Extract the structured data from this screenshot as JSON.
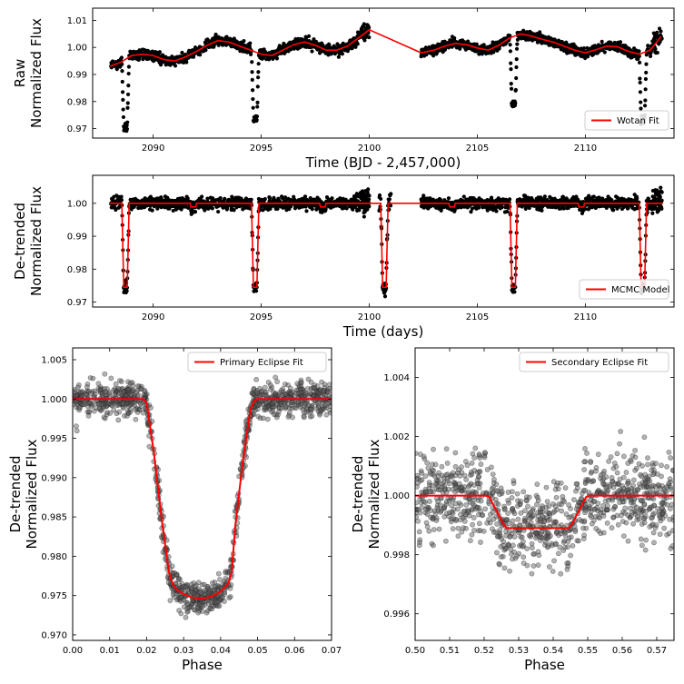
{
  "chart_data": [
    {
      "type": "scatter",
      "panel": "raw",
      "xlabel": "Time (BJD - 2,457,000)",
      "ylabel": [
        "Raw",
        "Normalized Flux"
      ],
      "xlim": [
        2087.2,
        2114.1
      ],
      "ylim": [
        0.9665,
        1.0145
      ],
      "xticks": [
        2090,
        2095,
        2100,
        2105,
        2110
      ],
      "xtick_labels": [
        "2090",
        "2095",
        "2100",
        "2105",
        "2110"
      ],
      "yticks": [
        0.97,
        0.98,
        0.99,
        1.0,
        1.01
      ],
      "ytick_labels": [
        "0.97",
        "0.98",
        "0.99",
        "1.00",
        "1.01"
      ],
      "legend": {
        "position": "lower-right",
        "entries": [
          "Wotan Fit"
        ]
      },
      "grid": false,
      "eclipse_times": [
        2088.72,
        2094.72,
        2100.7,
        2106.68,
        2112.66
      ],
      "eclipse_depth": 0.025,
      "data_gap": [
        2100.0,
        2102.4
      ],
      "series": [
        {
          "name": "Wotan Fit",
          "kind": "line",
          "color": "#ff0000",
          "x": [
            2088.0,
            2088.5,
            2089.0,
            2089.5,
            2090.0,
            2090.5,
            2091.0,
            2091.5,
            2092.0,
            2092.5,
            2093.0,
            2093.5,
            2094.0,
            2094.5,
            2095.0,
            2095.5,
            2096.0,
            2096.5,
            2097.0,
            2097.5,
            2098.0,
            2098.5,
            2099.0,
            2099.5,
            2100.0,
            2102.4,
            2103.0,
            2103.5,
            2104.0,
            2104.5,
            2105.0,
            2105.5,
            2106.0,
            2106.5,
            2107.0,
            2107.5,
            2108.0,
            2108.5,
            2109.0,
            2109.5,
            2110.0,
            2110.5,
            2111.0,
            2111.5,
            2112.0,
            2112.5,
            2113.0,
            2113.5
          ],
          "y": [
            0.993,
            0.9945,
            0.997,
            0.9975,
            0.997,
            0.9955,
            0.995,
            0.9965,
            0.9985,
            1.0008,
            1.0025,
            1.002,
            1.0005,
            0.999,
            0.9975,
            0.997,
            0.999,
            1.001,
            1.002,
            1.0008,
            0.999,
            0.999,
            1.0005,
            1.0035,
            1.0065,
            0.998,
            0.999,
            1.0005,
            1.0015,
            1.001,
            0.9998,
            0.999,
            1.0008,
            1.0035,
            1.005,
            1.0042,
            1.003,
            1.002,
            1.0005,
            0.999,
            0.998,
            0.9992,
            1.0005,
            1.0002,
            0.9985,
            0.9975,
            0.999,
            1.004
          ]
        },
        {
          "name": "",
          "kind": "scatter",
          "color": "#000000"
        }
      ]
    },
    {
      "type": "scatter",
      "panel": "detrended",
      "xlabel": "Time (days)",
      "ylabel": [
        "De-trended",
        "Normalized Flux"
      ],
      "xlim": [
        2087.2,
        2114.1
      ],
      "ylim": [
        0.9685,
        1.0085
      ],
      "xticks": [
        2090,
        2095,
        2100,
        2105,
        2110
      ],
      "xtick_labels": [
        "2090",
        "2095",
        "2100",
        "2105",
        "2110"
      ],
      "yticks": [
        0.97,
        0.98,
        0.99,
        1.0
      ],
      "ytick_labels": [
        "0.97",
        "0.98",
        "0.99",
        "1.00"
      ],
      "legend": {
        "position": "lower-right",
        "entries": [
          "MCMC Model"
        ]
      },
      "grid": false,
      "primary_eclipse_times": [
        2088.72,
        2094.72,
        2100.7,
        2106.68,
        2112.66
      ],
      "secondary_eclipse_times": [
        2091.86,
        2097.85,
        2103.83,
        2109.81
      ],
      "primary_depth": 0.0255,
      "secondary_depth": 0.0011,
      "data_gap": [
        2100.0,
        2100.45
      ],
      "data_gap_2": [
        2101.0,
        2102.4
      ],
      "series": [
        {
          "name": "MCMC Model",
          "kind": "line",
          "color": "#ff0000"
        },
        {
          "name": "",
          "kind": "scatter",
          "color": "#000000"
        }
      ]
    },
    {
      "type": "scatter",
      "panel": "primary",
      "xlabel": "Phase",
      "ylabel": [
        "De-trended",
        "Normalized Flux"
      ],
      "xlim": [
        0.0,
        0.07
      ],
      "ylim": [
        0.9693,
        1.0065
      ],
      "xticks": [
        0.0,
        0.01,
        0.02,
        0.03,
        0.04,
        0.05,
        0.06,
        0.07
      ],
      "xtick_labels": [
        "0.00",
        "0.01",
        "0.02",
        "0.03",
        "0.04",
        "0.05",
        "0.06",
        "0.07"
      ],
      "yticks": [
        0.97,
        0.975,
        0.98,
        0.985,
        0.99,
        0.995,
        1.0,
        1.005
      ],
      "ytick_labels": [
        "0.970",
        "0.975",
        "0.980",
        "0.985",
        "0.990",
        "0.995",
        "1.000",
        "1.005"
      ],
      "legend": {
        "position": "top-right",
        "entries": [
          "Primary Eclipse Fit"
        ]
      },
      "grid": false,
      "series": [
        {
          "name": "Primary Eclipse Fit",
          "kind": "line",
          "color": "#ff0000",
          "x": [
            0.0,
            0.019,
            0.02,
            0.022,
            0.024,
            0.026,
            0.027,
            0.028,
            0.03,
            0.032,
            0.034,
            0.035,
            0.036,
            0.038,
            0.04,
            0.042,
            0.043,
            0.044,
            0.046,
            0.048,
            0.049,
            0.05,
            0.07
          ],
          "y": [
            1.0,
            1.0,
            0.9995,
            0.993,
            0.985,
            0.978,
            0.9765,
            0.9758,
            0.9752,
            0.9748,
            0.9746,
            0.9746,
            0.9747,
            0.975,
            0.9755,
            0.9765,
            0.978,
            0.984,
            0.992,
            0.9985,
            0.9997,
            1.0,
            1.0
          ]
        },
        {
          "name": "",
          "kind": "scatter",
          "color": "#555555"
        }
      ]
    },
    {
      "type": "scatter",
      "panel": "secondary",
      "xlabel": "Phase",
      "ylabel": [
        "De-trended",
        "Normalized Flux"
      ],
      "xlim": [
        0.5,
        0.575
      ],
      "ylim": [
        0.9951,
        1.005
      ],
      "xticks": [
        0.5,
        0.51,
        0.52,
        0.53,
        0.54,
        0.55,
        0.56,
        0.57
      ],
      "xtick_labels": [
        "0.50",
        "0.51",
        "0.52",
        "0.53",
        "0.54",
        "0.55",
        "0.56",
        "0.57"
      ],
      "yticks": [
        0.996,
        0.998,
        1.0,
        1.002,
        1.004
      ],
      "ytick_labels": [
        "0.996",
        "0.998",
        "1.000",
        "1.002",
        "1.004"
      ],
      "legend": {
        "position": "top-right",
        "entries": [
          "Secondary Eclipse Fit"
        ]
      },
      "grid": false,
      "series": [
        {
          "name": "Secondary Eclipse Fit",
          "kind": "line",
          "color": "#ff0000",
          "x": [
            0.5,
            0.5205,
            0.5215,
            0.5235,
            0.5255,
            0.5265,
            0.5445,
            0.5455,
            0.5475,
            0.5495,
            0.5505,
            0.575
          ],
          "y": [
            1.0,
            1.0,
            0.99995,
            0.9995,
            0.99905,
            0.9989,
            0.9989,
            0.99905,
            0.9995,
            0.99995,
            1.0,
            1.0
          ]
        },
        {
          "name": "",
          "kind": "scatter",
          "color": "#555555"
        }
      ]
    }
  ]
}
